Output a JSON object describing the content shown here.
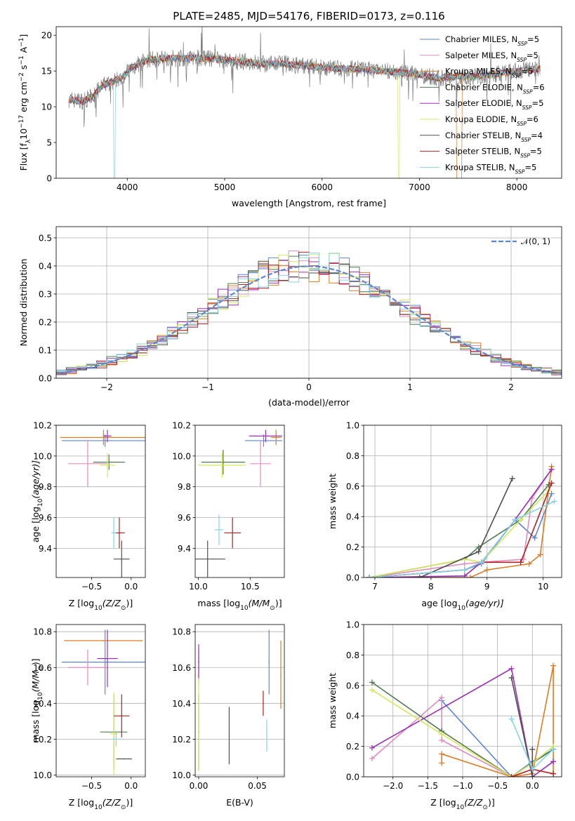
{
  "figure": {
    "title": "PLATE=2485, MJD=54176, FIBERID=0173, z=0.116"
  },
  "models": [
    {
      "name": "Chabrier MILES",
      "nssp": "5",
      "color": "#5b86d6"
    },
    {
      "name": "Salpeter MILES",
      "nssp": "5",
      "color": "#e18bbf"
    },
    {
      "name": "Kroupa MILES",
      "nssp": "5",
      "color": "#e07b22"
    },
    {
      "name": "Chabrier ELODIE",
      "nssp": "6",
      "color": "#4f7a52"
    },
    {
      "name": "Salpeter ELODIE",
      "nssp": "5",
      "color": "#9b30b8"
    },
    {
      "name": "Kroupa ELODIE",
      "nssp": "6",
      "color": "#d6e85a"
    },
    {
      "name": "Chabrier STELIB",
      "nssp": "4",
      "color": "#505050"
    },
    {
      "name": "Salpeter STELIB",
      "nssp": "5",
      "color": "#b41f1f"
    },
    {
      "name": "Kroupa STELIB",
      "nssp": "5",
      "color": "#84d4e6"
    }
  ],
  "chart_data": [
    {
      "id": "spectrum",
      "type": "line",
      "xlabel": "wavelength [Angstrom, rest frame]",
      "ylabel": "Flux [f",
      "ylabel_sub": "λ",
      "ylabel_mid": "10",
      "ylabel_sup1": "−17",
      "ylabel_mid2": " erg cm",
      "ylabel_sup2": "−2",
      "ylabel_mid3": " s",
      "ylabel_sup3": "−1",
      "ylabel_mid4": " A",
      "ylabel_sup4": "−1",
      "ylabel_end": "]",
      "xlim": [
        3270,
        8460
      ],
      "ylim": [
        0,
        21.2
      ],
      "xticks": [
        "4000",
        "5000",
        "6000",
        "7000",
        "8000"
      ],
      "xtick_values": [
        4000,
        5000,
        6000,
        7000,
        8000
      ],
      "yticks": [
        "0",
        "5",
        "10",
        "15",
        "20"
      ],
      "ytick_values": [
        0,
        5,
        10,
        15,
        20
      ],
      "continuum": [
        [
          3400,
          11.0
        ],
        [
          3550,
          10.8
        ],
        [
          3650,
          11.5
        ],
        [
          3750,
          13.0
        ],
        [
          3850,
          13.5
        ],
        [
          3950,
          14.2
        ],
        [
          4050,
          15.5
        ],
        [
          4200,
          16.5
        ],
        [
          4400,
          16.8
        ],
        [
          4600,
          16.8
        ],
        [
          4800,
          16.8
        ],
        [
          5000,
          16.5
        ],
        [
          5200,
          16.3
        ],
        [
          5400,
          16.0
        ],
        [
          5600,
          16.0
        ],
        [
          5800,
          15.8
        ],
        [
          6000,
          15.5
        ],
        [
          6200,
          15.3
        ],
        [
          6400,
          15.3
        ],
        [
          6600,
          15.0
        ],
        [
          6800,
          14.8
        ],
        [
          7000,
          14.5
        ],
        [
          7200,
          14.0
        ],
        [
          7400,
          14.3
        ],
        [
          7600,
          14.2
        ],
        [
          7800,
          14.6
        ],
        [
          8000,
          15.0
        ],
        [
          8200,
          15.3
        ]
      ]
    },
    {
      "id": "residuals",
      "type": "histogram",
      "xlabel": "(data-model)/error",
      "ylabel": "Normed distribution",
      "xlim": [
        -2.5,
        2.5
      ],
      "ylim": [
        0,
        0.54
      ],
      "xticks": [
        "−2",
        "−1",
        "0",
        "1",
        "2"
      ],
      "xtick_values": [
        -2,
        -1,
        0,
        1,
        2
      ],
      "yticks": [
        "0.0",
        "0.1",
        "0.2",
        "0.3",
        "0.4",
        "0.5"
      ],
      "ytick_values": [
        0,
        0.1,
        0.2,
        0.3,
        0.4,
        0.5
      ],
      "bin_width": 0.1,
      "legend_label": "𝒩(0, 1)",
      "gaussian": {
        "mean": 0,
        "sigma": 1
      }
    },
    {
      "id": "age-vs-Z",
      "type": "errorbar",
      "xlabel": "Z [log",
      "xlabel_sub": "10",
      "xlabel_rest": "(Z/Z",
      "xlabel_sub2": "⊙",
      "xlabel_end": ")]",
      "ylabel": "age  [log",
      "ylabel_sub": "10",
      "ylabel_rest": "(age/yr)]",
      "xlim": [
        -0.95,
        0.18
      ],
      "ylim": [
        9.21,
        10.2
      ],
      "xticks": [
        "−0.5",
        "0.0"
      ],
      "xtick_values": [
        -0.5,
        0.0
      ],
      "yticks": [
        "9.4",
        "9.6",
        "9.8",
        "10.0",
        "10.2"
      ],
      "ytick_values": [
        9.4,
        9.6,
        9.8,
        10.0,
        10.2
      ],
      "points": [
        {
          "x": -0.33,
          "xerr": 0.55,
          "y": 10.1,
          "yerr": 0.04,
          "model": 0
        },
        {
          "x": -0.55,
          "xerr": 0.25,
          "y": 9.95,
          "yerr": 0.15,
          "model": 1
        },
        {
          "x": -0.35,
          "xerr": 0.55,
          "y": 10.12,
          "yerr": 0.05,
          "model": 2
        },
        {
          "x": -0.28,
          "xerr": 0.2,
          "y": 9.96,
          "yerr": 0.05,
          "model": 3
        },
        {
          "x": -0.3,
          "xerr": 0.05,
          "y": 10.13,
          "yerr": 0.04,
          "model": 4
        },
        {
          "x": -0.3,
          "xerr": 0.1,
          "y": 9.94,
          "yerr": 0.08,
          "model": 5
        },
        {
          "x": -0.12,
          "xerr": 0.1,
          "y": 9.33,
          "yerr": 0.12,
          "model": 6
        },
        {
          "x": -0.15,
          "xerr": 0.07,
          "y": 9.5,
          "yerr": 0.1,
          "model": 7
        },
        {
          "x": -0.22,
          "xerr": 0.03,
          "y": 9.5,
          "yerr": 0.1,
          "model": 8
        }
      ]
    },
    {
      "id": "age-vs-mass",
      "type": "errorbar",
      "xlabel": "mass [log",
      "xlabel_sub": "10",
      "xlabel_rest": "(M/M",
      "xlabel_sub2": "⊙",
      "xlabel_end": ")]",
      "xlim": [
        9.97,
        10.83
      ],
      "ylim": [
        9.21,
        10.2
      ],
      "xticks": [
        "10.0",
        "10.5"
      ],
      "xtick_values": [
        10.0,
        10.5
      ],
      "yticks": [
        "9.4",
        "9.6",
        "9.8",
        "10.0",
        "10.2"
      ],
      "ytick_values": [
        9.4,
        9.6,
        9.8,
        10.0,
        10.2
      ],
      "points": [
        {
          "x": 10.63,
          "xerr": 0.18,
          "y": 10.1,
          "yerr": 0.04,
          "model": 0
        },
        {
          "x": 10.6,
          "xerr": 0.1,
          "y": 9.95,
          "yerr": 0.15,
          "model": 1
        },
        {
          "x": 10.75,
          "xerr": 0.05,
          "y": 10.12,
          "yerr": 0.05,
          "model": 2
        },
        {
          "x": 10.24,
          "xerr": 0.21,
          "y": 9.96,
          "yerr": 0.08,
          "model": 3
        },
        {
          "x": 10.65,
          "xerr": 0.16,
          "y": 10.13,
          "yerr": 0.04,
          "model": 4
        },
        {
          "x": 10.23,
          "xerr": 0.23,
          "y": 9.94,
          "yerr": 0.08,
          "model": 5
        },
        {
          "x": 10.09,
          "xerr": 0.17,
          "y": 9.33,
          "yerr": 0.12,
          "model": 6
        },
        {
          "x": 10.33,
          "xerr": 0.08,
          "y": 9.5,
          "yerr": 0.1,
          "model": 7
        },
        {
          "x": 10.2,
          "xerr": 0.04,
          "y": 9.52,
          "yerr": 0.1,
          "model": 8
        }
      ]
    },
    {
      "id": "weight-vs-age",
      "type": "line",
      "xlabel": "age  [log",
      "xlabel_sub": "10",
      "xlabel_rest": "(age/yr)]",
      "ylabel": "mass weight",
      "xlim": [
        6.8,
        10.33
      ],
      "ylim": [
        0,
        1.0
      ],
      "xticks": [
        "7",
        "8",
        "9",
        "10"
      ],
      "xtick_values": [
        7,
        8,
        9,
        10
      ],
      "yticks": [
        "0.0",
        "0.2",
        "0.4",
        "0.6",
        "0.8",
        "1.0"
      ],
      "ytick_values": [
        0,
        0.2,
        0.4,
        0.6,
        0.8,
        1.0
      ],
      "series": [
        {
          "model": 0,
          "x": [
            6.9,
            8.6,
            8.9,
            9.5,
            9.85,
            10.15
          ],
          "y": [
            0.0,
            0.05,
            0.09,
            0.38,
            0.26,
            0.55
          ]
        },
        {
          "model": 1,
          "x": [
            6.9,
            8.6,
            8.9,
            9.65,
            9.8,
            10.15
          ],
          "y": [
            0.0,
            0.09,
            0.1,
            0.12,
            0.52,
            0.71
          ]
        },
        {
          "model": 2,
          "x": [
            6.9,
            8.7,
            9.0,
            9.75,
            9.95,
            10.15
          ],
          "y": [
            0.0,
            0.0,
            0.05,
            0.09,
            0.15,
            0.73
          ]
        },
        {
          "model": 3,
          "x": [
            6.9,
            8.6,
            8.85,
            9.6,
            10.1
          ],
          "y": [
            0.0,
            0.12,
            0.2,
            0.38,
            0.61
          ]
        },
        {
          "model": 4,
          "x": [
            6.9,
            8.6,
            8.9,
            9.5,
            10.15
          ],
          "y": [
            0.0,
            0.01,
            0.1,
            0.38,
            0.71
          ]
        },
        {
          "model": 5,
          "x": [
            6.9,
            8.6,
            8.9,
            9.6,
            10.1
          ],
          "y": [
            0.0,
            0.12,
            0.1,
            0.38,
            0.57
          ]
        },
        {
          "model": 6,
          "x": [
            7.8,
            8.85,
            9.45
          ],
          "y": [
            0.0,
            0.17,
            0.65
          ]
        },
        {
          "model": 7,
          "x": [
            6.9,
            8.6,
            8.9,
            9.6,
            10.15
          ],
          "y": [
            0.0,
            0.05,
            0.1,
            0.1,
            0.62
          ]
        },
        {
          "model": 8,
          "x": [
            6.9,
            8.6,
            8.9,
            9.5,
            10.2
          ],
          "y": [
            0.0,
            0.05,
            0.1,
            0.38,
            0.5
          ]
        }
      ]
    },
    {
      "id": "mass-vs-Z",
      "type": "errorbar",
      "xlabel": "Z [log",
      "xlabel_sub": "10",
      "xlabel_rest": "(Z/Z",
      "xlabel_sub2": "⊙",
      "xlabel_end": ")]",
      "ylabel": "mass [log",
      "ylabel_sub": "10",
      "ylabel_rest": "(M/M",
      "ylabel_sub2": "⊙",
      "ylabel_end": ")]",
      "xlim": [
        -0.95,
        0.18
      ],
      "ylim": [
        9.99,
        10.84
      ],
      "xticks": [
        "−0.5",
        "0.0"
      ],
      "xtick_values": [
        -0.5,
        0.0
      ],
      "yticks": [
        "10.0",
        "10.2",
        "10.4",
        "10.6",
        "10.8"
      ],
      "ytick_values": [
        10.0,
        10.2,
        10.4,
        10.6,
        10.8
      ],
      "points": [
        {
          "x": -0.33,
          "xerr": 0.55,
          "y": 10.63,
          "yerr": 0.18,
          "model": 0
        },
        {
          "x": -0.55,
          "xerr": 0.25,
          "y": 10.6,
          "yerr": 0.1,
          "model": 1
        },
        {
          "x": -0.35,
          "xerr": 0.5,
          "y": 10.75,
          "yerr": 0.0,
          "model": 2
        },
        {
          "x": -0.22,
          "xerr": 0.17,
          "y": 10.24,
          "yerr": 0.21,
          "model": 3
        },
        {
          "x": -0.3,
          "xerr": 0.13,
          "y": 10.65,
          "yerr": 0.16,
          "model": 4
        },
        {
          "x": -0.22,
          "xerr": 0.05,
          "y": 10.23,
          "yerr": 0.23,
          "model": 5
        },
        {
          "x": -0.09,
          "xerr": 0.1,
          "y": 10.09,
          "yerr": 0.0,
          "model": 6
        },
        {
          "x": -0.12,
          "xerr": 0.1,
          "y": 10.33,
          "yerr": 0.12,
          "model": 7
        },
        {
          "x": -0.19,
          "xerr": 0.05,
          "y": 10.2,
          "yerr": 0.04,
          "model": 8
        }
      ]
    },
    {
      "id": "mass-vs-ebv",
      "type": "errorbar",
      "xlabel": "E(B-V)",
      "xlim": [
        -0.003,
        0.073
      ],
      "ylim": [
        9.99,
        10.84
      ],
      "xticks": [
        "0.00",
        "0.05"
      ],
      "xtick_values": [
        0.0,
        0.05
      ],
      "yticks": [
        "10.0",
        "10.2",
        "10.4",
        "10.6",
        "10.8"
      ],
      "ytick_values": [
        10.0,
        10.2,
        10.4,
        10.6,
        10.8
      ],
      "points": [
        {
          "x": 0.06,
          "y": 10.63,
          "yerr": 0.18,
          "model": 0
        },
        {
          "x": 0.0,
          "y": 10.6,
          "yerr": 0.1,
          "model": 1
        },
        {
          "x": 0.07,
          "y": 10.56,
          "yerr": 0.19,
          "model": 2
        },
        {
          "x": 0.0,
          "y": 10.24,
          "yerr": 0.21,
          "model": 3
        },
        {
          "x": 0.0,
          "y": 10.63,
          "yerr": 0.1,
          "model": 4
        },
        {
          "x": 0.0,
          "y": 10.28,
          "yerr": 0.26,
          "model": 5
        },
        {
          "x": 0.026,
          "y": 10.22,
          "yerr": 0.16,
          "model": 6
        },
        {
          "x": 0.055,
          "y": 10.4,
          "yerr": 0.07,
          "model": 7
        },
        {
          "x": 0.058,
          "y": 10.22,
          "yerr": 0.09,
          "model": 8
        }
      ]
    },
    {
      "id": "weight-vs-Z",
      "type": "line",
      "xlabel": "Z [log",
      "xlabel_sub": "10",
      "xlabel_rest": "(Z/Z",
      "xlabel_sub2": "⊙",
      "xlabel_end": ")]",
      "ylabel": "mass weight",
      "xlim": [
        -2.42,
        0.42
      ],
      "ylim": [
        0,
        1.0
      ],
      "xticks": [
        "−2.0",
        "−1.5",
        "−1.0",
        "−0.5",
        "0.0"
      ],
      "xtick_values": [
        -2.0,
        -1.5,
        -1.0,
        -0.5,
        0.0
      ],
      "yticks": [
        "0.0",
        "0.2",
        "0.4",
        "0.6",
        "0.8",
        "1.0"
      ],
      "ytick_values": [
        0,
        0.2,
        0.4,
        0.6,
        0.8,
        1.0
      ],
      "series": [
        {
          "model": 0,
          "x": [
            -1.3,
            -0.3,
            0.0,
            0.3
          ],
          "y": [
            0.5,
            0.0,
            0.1,
            0.18
          ]
        },
        {
          "model": 1,
          "x": [
            -2.3,
            -1.3,
            -1.3,
            -0.3,
            0.0,
            0.3
          ],
          "y": [
            0.12,
            0.52,
            0.24,
            0.0,
            0.0,
            0.1
          ]
        },
        {
          "model": 2,
          "x": [
            -1.3,
            -1.3,
            -0.3,
            0.0,
            0.3,
            0.3
          ],
          "y": [
            0.09,
            0.15,
            0.0,
            0.02,
            0.73,
            0.02
          ]
        },
        {
          "model": 3,
          "x": [
            -2.3,
            -1.3,
            -0.3,
            0.0,
            0.3
          ],
          "y": [
            0.62,
            0.3,
            0.0,
            0.09,
            0.18
          ]
        },
        {
          "model": 4,
          "x": [
            -2.3,
            -0.3,
            0.0,
            0.3
          ],
          "y": [
            0.19,
            0.71,
            0.0,
            0.1
          ]
        },
        {
          "model": 5,
          "x": [
            -2.3,
            -1.3,
            -0.3,
            0.0,
            0.3
          ],
          "y": [
            0.57,
            0.28,
            0.0,
            0.09,
            0.2
          ]
        },
        {
          "model": 6,
          "x": [
            -0.3,
            0.0,
            0.0
          ],
          "y": [
            0.65,
            0.0,
            0.18
          ]
        },
        {
          "model": 7,
          "x": [
            -0.3,
            0.0,
            0.3
          ],
          "y": [
            0.0,
            0.05,
            0.02
          ]
        },
        {
          "model": 8,
          "x": [
            -0.3,
            0.0,
            0.3
          ],
          "y": [
            0.38,
            0.05,
            0.18
          ]
        }
      ]
    }
  ]
}
